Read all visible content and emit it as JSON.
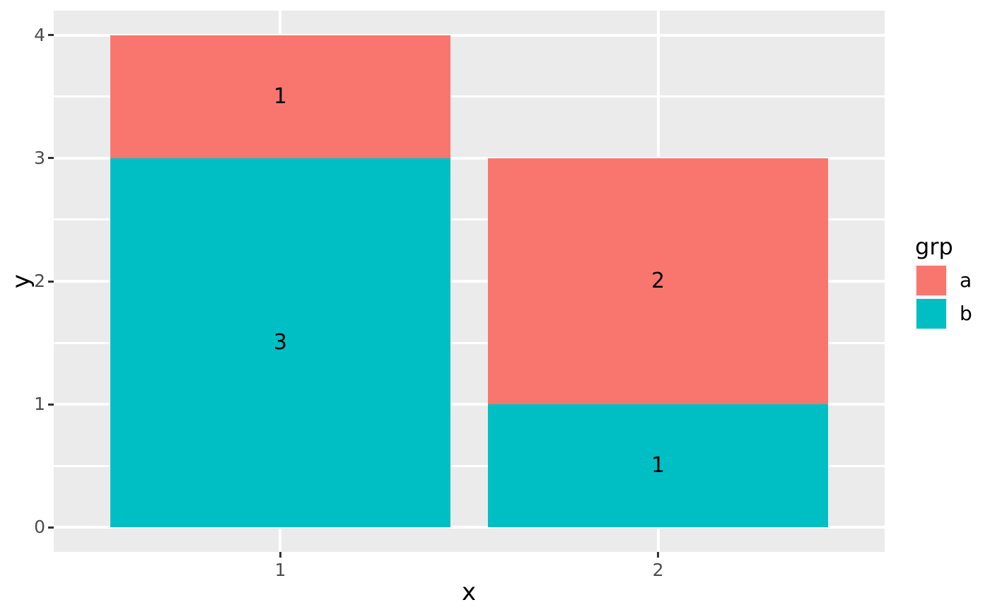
{
  "chart_data": {
    "type": "bar",
    "stacked": true,
    "title": "",
    "xlabel": "x",
    "ylabel": "y",
    "categories": [
      "1",
      "2"
    ],
    "x_positions": [
      1,
      2
    ],
    "bar_width": 0.9,
    "series": [
      {
        "name": "b",
        "color": "#00BFC4",
        "values": [
          3,
          1
        ]
      },
      {
        "name": "a",
        "color": "#F8766D",
        "values": [
          1,
          2
        ]
      }
    ],
    "segment_value_labels": {
      "x1": {
        "b": "3",
        "a": "1"
      },
      "x2": {
        "b": "1",
        "a": "2"
      }
    },
    "x_range": [
      0.4,
      2.6
    ],
    "y_range": [
      -0.2,
      4.2
    ],
    "x_ticks": {
      "positions": [
        1,
        2
      ],
      "labels": [
        "1",
        "2"
      ]
    },
    "y_ticks": {
      "positions": [
        0,
        1,
        2,
        3,
        4
      ],
      "labels": [
        "0",
        "1",
        "2",
        "3",
        "4"
      ]
    },
    "y_minor_gridlines": [
      0.5,
      1.5,
      2.5,
      3.5
    ],
    "grid": "white major gridlines on x and y, white minor gridlines on y only",
    "legend": {
      "title": "grp",
      "position": "right",
      "entries": [
        {
          "label": "a",
          "color": "#F8766D"
        },
        {
          "label": "b",
          "color": "#00BFC4"
        }
      ]
    },
    "theme": {
      "figure_background": "#FFFFFF",
      "panel_background": "#EBEBEB",
      "grid_color": "#FFFFFF",
      "tick_label_color": "#4D4D4D",
      "tick_mark_color": "#333333",
      "axis_title_color": "#000000",
      "bar_label_color": "#000000",
      "legend_key_background": "#F2F2F2"
    }
  }
}
